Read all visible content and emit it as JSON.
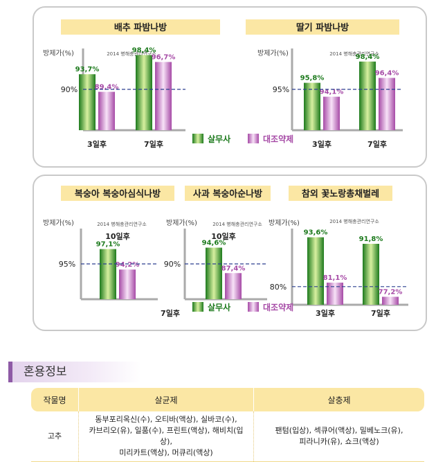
{
  "legend": {
    "product": "살무사",
    "control": "대조약제"
  },
  "source_note": "2014 병해충관리연구소",
  "ylabel": "방제가(%)",
  "colors": {
    "product_dark": "#1d7a1d",
    "product_light": "#d8f0a0",
    "control_dark": "#a64aa6",
    "control_light": "#f2d6f2",
    "ref_line": "#2a3f8f",
    "title_bg": "#fbe7a4"
  },
  "chart_data": [
    {
      "type": "bar",
      "title": "배추 파밤나방",
      "ylabel": "방제가(%)",
      "note": "2014 병해충관리연구소",
      "categories": [
        "3일후",
        "7일후"
      ],
      "series": [
        {
          "name": "살무사",
          "values": [
            93.7,
            98.4
          ]
        },
        {
          "name": "대조약제",
          "values": [
            89.4,
            96.7
          ]
        }
      ],
      "labels": [
        [
          "93,7%",
          "98,4%"
        ],
        [
          "89,4%",
          "96,7%"
        ]
      ],
      "reference": {
        "value": 90,
        "label": "90%"
      },
      "ylim": [
        80,
        100
      ]
    },
    {
      "type": "bar",
      "title": "딸기 파밤나방",
      "ylabel": "방제가(%)",
      "note": "2014 병해충관리연구소",
      "categories": [
        "3일후",
        "7일후"
      ],
      "series": [
        {
          "name": "살무사",
          "values": [
            95.8,
            98.4
          ]
        },
        {
          "name": "대조약제",
          "values": [
            94.1,
            96.4
          ]
        }
      ],
      "labels": [
        [
          "95,8%",
          "98,4%"
        ],
        [
          "94,1%",
          "96,4%"
        ]
      ],
      "reference": {
        "value": 95,
        "label": "95%"
      },
      "ylim": [
        90,
        100
      ]
    },
    {
      "type": "bar",
      "title": "복숭아 복숭아심식나방",
      "ylabel": "방제가(%)",
      "note": "2014 병해충관리연구소",
      "categories": [
        "10일후"
      ],
      "category_position": "top",
      "series": [
        {
          "name": "살무사",
          "values": [
            97.1
          ]
        },
        {
          "name": "대조약제",
          "values": [
            94.2
          ]
        }
      ],
      "labels": [
        [
          "97,1%"
        ],
        [
          "94,2%"
        ]
      ],
      "reference": {
        "value": 95,
        "label": "95%"
      },
      "ylim": [
        90,
        100
      ]
    },
    {
      "type": "bar",
      "title": "사과 복숭아순나방",
      "ylabel": "방제가(%)",
      "note": "2014 병해충관리연구소",
      "categories": [
        "10일후"
      ],
      "category_position": "top",
      "series": [
        {
          "name": "살무사",
          "values": [
            94.6
          ]
        },
        {
          "name": "대조약제",
          "values": [
            87.4
          ]
        }
      ],
      "labels": [
        [
          "94,6%"
        ],
        [
          "87,4%"
        ]
      ],
      "reference": {
        "value": 90,
        "label": "90%"
      },
      "ylim": [
        80,
        100
      ]
    },
    {
      "type": "bar",
      "title": "참외 꽃노랑총채벌레",
      "ylabel": "방제가(%)",
      "note": "2014 병해충관리연구소",
      "categories": [
        "3일후",
        "7일후"
      ],
      "series": [
        {
          "name": "살무사",
          "values": [
            93.6,
            91.8
          ]
        },
        {
          "name": "대조약제",
          "values": [
            81.1,
            77.2
          ]
        }
      ],
      "labels": [
        [
          "93,6%",
          "91,8%"
        ],
        [
          "81,1%",
          "77,2%"
        ]
      ],
      "reference": {
        "value": 80,
        "label": "80%"
      },
      "ylim": [
        75,
        96
      ]
    }
  ],
  "extra_axis_label": "7일후",
  "mix_info": {
    "title": "혼용정보",
    "headers": [
      "작물명",
      "살균제",
      "살충제"
    ],
    "rows": [
      {
        "crop": "고추",
        "fungicide": [
          "동부포리옥신(수), 오티바(액상), 실바코(수),",
          "카브리오(유), 일품(수), 프린트(액상), 해비치(입상),",
          "미리카트(액상), 머큐리(액상)"
        ],
        "insecticide": [
          "팬텀(입상), 섹큐어(액상), 밀베노크(유),",
          "피라니카(유), 쇼크(액상)"
        ]
      }
    ]
  }
}
